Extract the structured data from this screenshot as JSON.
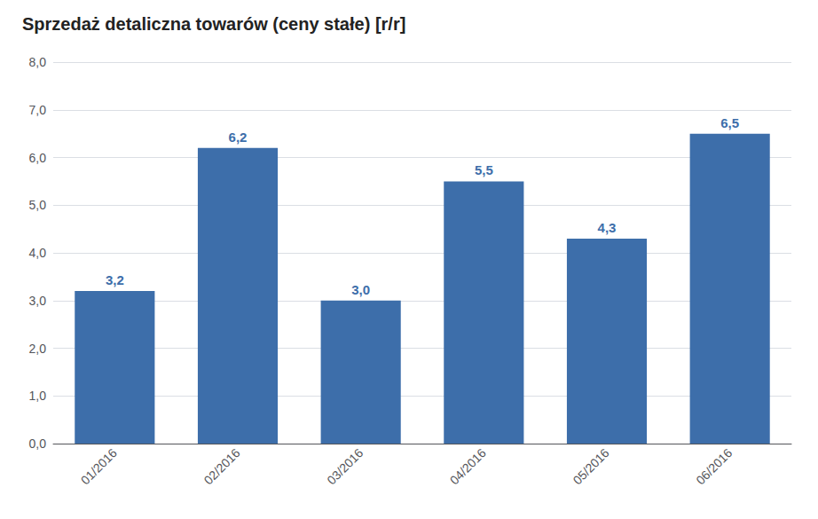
{
  "chart_data": {
    "type": "bar",
    "title": "Sprzedaż detaliczna towarów (ceny stałe) [r/r]",
    "categories": [
      "01/2016",
      "02/2016",
      "03/2016",
      "04/2016",
      "05/2016",
      "06/2016"
    ],
    "values": [
      3.2,
      6.2,
      3.0,
      5.5,
      4.3,
      6.5
    ],
    "value_labels": [
      "3,2",
      "6,2",
      "3,0",
      "5,5",
      "4,3",
      "6,5"
    ],
    "color": "#3D6EAA",
    "ylim": [
      0,
      8.0
    ],
    "yticks": [
      {
        "value": 0.0,
        "label": "0,0"
      },
      {
        "value": 1.0,
        "label": "1,0"
      },
      {
        "value": 2.0,
        "label": "2,0"
      },
      {
        "value": 3.0,
        "label": "3,0"
      },
      {
        "value": 4.0,
        "label": "4,0"
      },
      {
        "value": 5.0,
        "label": "5,0"
      },
      {
        "value": 6.0,
        "label": "6,0"
      },
      {
        "value": 7.0,
        "label": "7,0"
      },
      {
        "value": 8.0,
        "label": "8,0"
      }
    ],
    "grid": true,
    "data_labels": true
  }
}
